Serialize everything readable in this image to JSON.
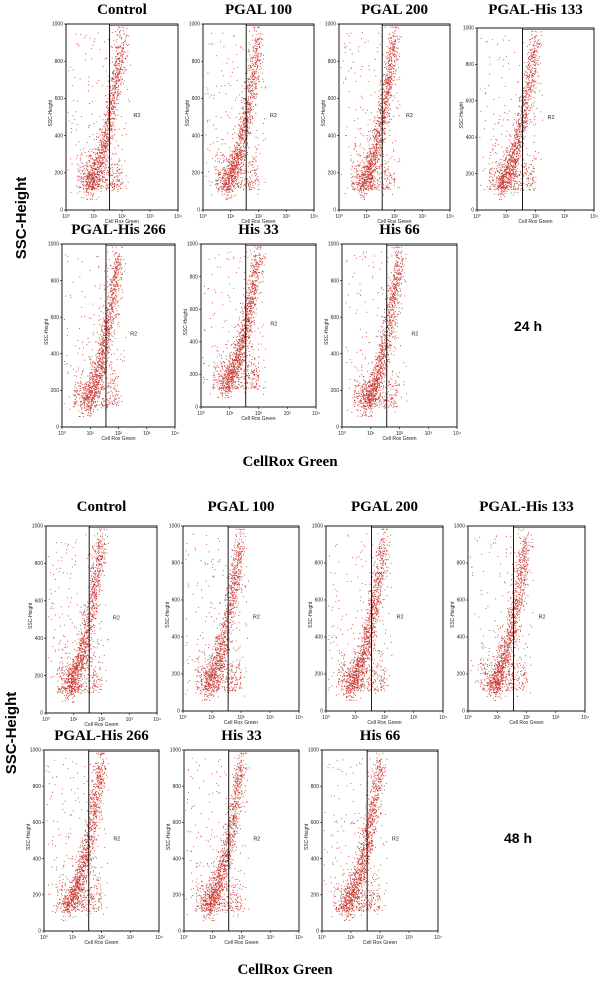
{
  "figure": {
    "sections": [
      {
        "time_label": "24 h",
        "y_title": "SSC-Height",
        "x_title": "CellRox Green"
      },
      {
        "time_label": "48 h",
        "y_title": "SSC-Height",
        "x_title": "CellRox Green"
      }
    ]
  },
  "chart_data": {
    "type": "scatter",
    "point_color": "#c0150c",
    "gate_label": "R2",
    "gate_lower_x": 36,
    "axes": {
      "x_label": "Cell Rox Green",
      "y_label": "SSC-Height",
      "x_scale": "log",
      "x_lim": [
        1,
        10000
      ],
      "x_ticks": [
        "10⁰",
        "10¹",
        "10²",
        "10³",
        "10⁴"
      ],
      "y_lim": [
        0,
        1000
      ],
      "y_ticks": [
        "0",
        "200",
        "400",
        "600",
        "800",
        "1000"
      ]
    },
    "panels": [
      {
        "section": 0,
        "label": "Control"
      },
      {
        "section": 0,
        "label": "PGAL 100"
      },
      {
        "section": 0,
        "label": "PGAL 200"
      },
      {
        "section": 0,
        "label": "PGAL-His 133"
      },
      {
        "section": 0,
        "label": "PGAL-His 266"
      },
      {
        "section": 0,
        "label": "His 33"
      },
      {
        "section": 0,
        "label": "His 66"
      },
      {
        "section": 1,
        "label": "Control"
      },
      {
        "section": 1,
        "label": "PGAL 100"
      },
      {
        "section": 1,
        "label": "PGAL 200"
      },
      {
        "section": 1,
        "label": "PGAL-His 133"
      },
      {
        "section": 1,
        "label": "PGAL-His 266"
      },
      {
        "section": 1,
        "label": "His 33"
      },
      {
        "section": 1,
        "label": "His 66"
      }
    ]
  }
}
